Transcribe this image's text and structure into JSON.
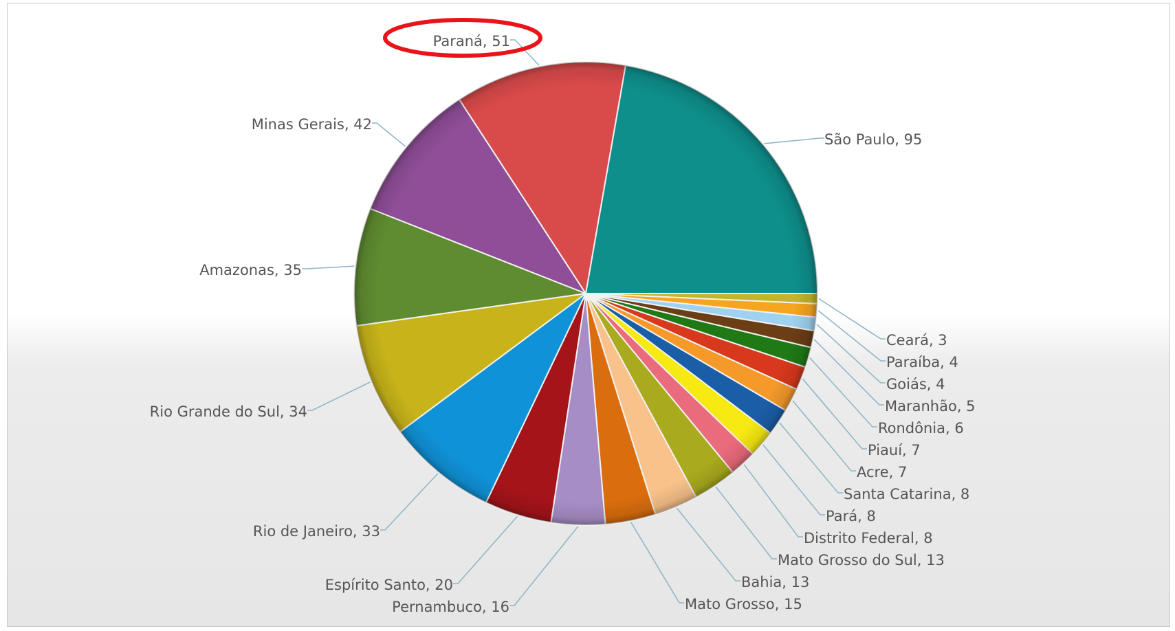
{
  "chart_data": {
    "type": "pie",
    "start_angle_deg": 0,
    "direction": "clockwise",
    "highlighted_label": "Paraná",
    "highlight_color": "#e8141a",
    "slices": [
      {
        "label": "Ceará",
        "value": 3,
        "color": "#c2b52a"
      },
      {
        "label": "Paraíba",
        "value": 4,
        "color": "#f6a51e"
      },
      {
        "label": "Goiás",
        "value": 4,
        "color": "#9fd2f0"
      },
      {
        "label": "Maranhão",
        "value": 5,
        "color": "#6b3e16"
      },
      {
        "label": "Rondônia",
        "value": 6,
        "color": "#1f7a16"
      },
      {
        "label": "Piauí",
        "value": 7,
        "color": "#d8381c"
      },
      {
        "label": "Acre",
        "value": 7,
        "color": "#f59a2a"
      },
      {
        "label": "Santa Catarina",
        "value": 8,
        "color": "#1b5ea8"
      },
      {
        "label": "Pará",
        "value": 8,
        "color": "#f7ea12"
      },
      {
        "label": "Distrito Federal",
        "value": 8,
        "color": "#ea6b7b"
      },
      {
        "label": "Mato Grosso do Sul",
        "value": 13,
        "color": "#aaaa1e"
      },
      {
        "label": "Bahia",
        "value": 13,
        "color": "#f9c28a"
      },
      {
        "label": "Mato Grosso",
        "value": 15,
        "color": "#da6d0e"
      },
      {
        "label": "Pernambuco",
        "value": 16,
        "color": "#a78dc6"
      },
      {
        "label": "Espírito Santo",
        "value": 20,
        "color": "#a41419"
      },
      {
        "label": "Rio de Janeiro",
        "value": 33,
        "color": "#1092d8"
      },
      {
        "label": "Rio Grande do Sul",
        "value": 34,
        "color": "#c8b41a"
      },
      {
        "label": "Amazonas",
        "value": 35,
        "color": "#5f8c30"
      },
      {
        "label": "Minas Gerais",
        "value": 42,
        "color": "#8f4e97"
      },
      {
        "label": "Paraná",
        "value": 51,
        "color": "#d94a4a"
      },
      {
        "label": "São Paulo",
        "value": 95,
        "color": "#0e8f8c"
      }
    ],
    "legend_labels": [
      {
        "label": "Paraná",
        "value": 51,
        "text": "Paraná, 51"
      },
      {
        "label": "Minas Gerais",
        "value": 42,
        "text": "Minas Gerais, 42"
      },
      {
        "label": "São Paulo",
        "value": 95,
        "text": "São Paulo, 95"
      },
      {
        "label": "Amazonas",
        "value": 35,
        "text": "Amazonas, 35"
      },
      {
        "label": "Ceará",
        "value": 3,
        "text": "Ceará, 3"
      },
      {
        "label": "Paraíba",
        "value": 4,
        "text": "Paraíba, 4"
      },
      {
        "label": "Goiás",
        "value": 4,
        "text": "Goiás, 4"
      },
      {
        "label": "Rio Grande do Sul",
        "value": 34,
        "text": "Rio Grande do Sul, 34"
      },
      {
        "label": "Maranhão",
        "value": 5,
        "text": "Maranhão, 5"
      },
      {
        "label": "Rondônia",
        "value": 6,
        "text": "Rondônia, 6"
      },
      {
        "label": "Piauí",
        "value": 7,
        "text": "Piauí, 7"
      },
      {
        "label": "Acre",
        "value": 7,
        "text": "Acre, 7"
      },
      {
        "label": "Santa Catarina",
        "value": 8,
        "text": "Santa Catarina, 8"
      },
      {
        "label": "Pará",
        "value": 8,
        "text": "Pará, 8"
      },
      {
        "label": "Rio de Janeiro",
        "value": 33,
        "text": "Rio de Janeiro, 33"
      },
      {
        "label": "Distrito Federal",
        "value": 8,
        "text": "Distrito Federal, 8"
      },
      {
        "label": "Mato Grosso do Sul",
        "value": 13,
        "text": "Mato Grosso do Sul, 13"
      },
      {
        "label": "Espírito Santo",
        "value": 20,
        "text": "Espírito Santo, 20"
      },
      {
        "label": "Bahia",
        "value": 13,
        "text": "Bahia, 13"
      },
      {
        "label": "Pernambuco",
        "value": 16,
        "text": "Pernambuco, 16"
      },
      {
        "label": "Mato Grosso",
        "value": 15,
        "text": "Mato Grosso, 15"
      }
    ]
  }
}
